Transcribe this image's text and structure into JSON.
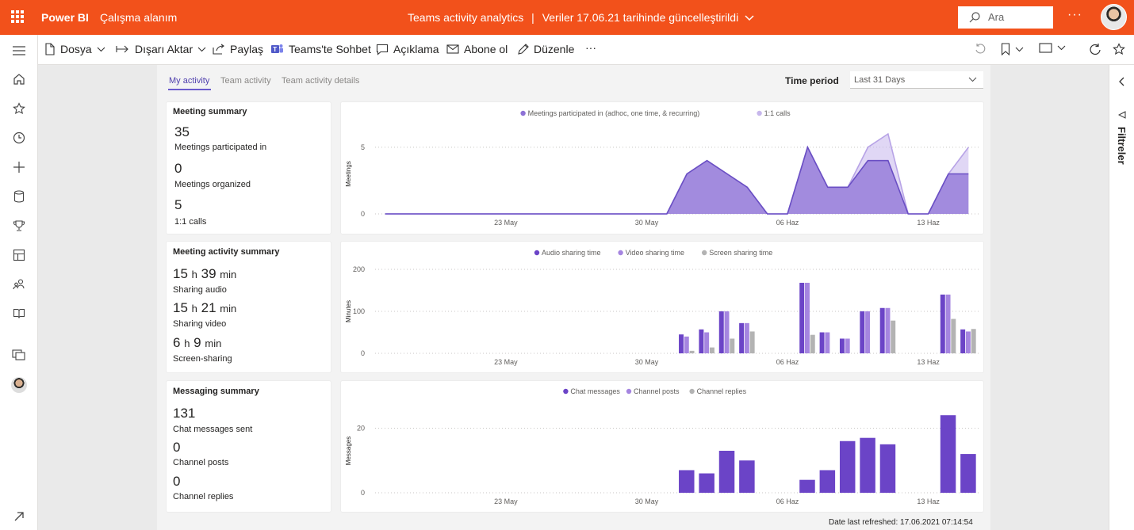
{
  "topbar": {
    "brand": "Power BI",
    "workspace": "Çalışma alanım",
    "report_title": "Teams activity analytics",
    "separator": "|",
    "refresh_note": "Veriler 17.06.21 tarihinde güncelleştirildi",
    "search_placeholder": "Ara",
    "more": "···",
    "colors": {
      "bar": "#f2511b"
    }
  },
  "toolbar": {
    "file": "Dosya",
    "export": "Dışarı Aktar",
    "share": "Paylaş",
    "teams_chat": "Teams'te Sohbet",
    "comment": "Açıklama",
    "subscribe": "Abone ol",
    "edit": "Düzenle",
    "more": "···"
  },
  "filters": {
    "label": "Filtreler"
  },
  "tabs": [
    {
      "label": "My activity"
    },
    {
      "label": "Team activity"
    },
    {
      "label": "Team activity details"
    }
  ],
  "time_period": {
    "label": "Time period",
    "value": "Last 31 Days"
  },
  "meeting_summary": {
    "title": "Meeting summary",
    "participated_value": "35",
    "participated_label": "Meetings participated in",
    "organized_value": "0",
    "organized_label": "Meetings organized",
    "calls_value": "5",
    "calls_label": "1:1 calls"
  },
  "meeting_activity": {
    "title": "Meeting activity summary",
    "audio_h": "15",
    "audio_m": "39",
    "audio_label": "Sharing audio",
    "video_h": "15",
    "video_m": "21",
    "video_label": "Sharing video",
    "screen_h": "6",
    "screen_m": "9",
    "screen_label": "Screen-sharing",
    "unit_h": "h",
    "unit_min": "min"
  },
  "messaging": {
    "title": "Messaging summary",
    "chat_value": "131",
    "chat_label": "Chat messages sent",
    "posts_value": "0",
    "posts_label": "Channel posts",
    "replies_value": "0",
    "replies_label": "Channel replies"
  },
  "footer": {
    "refreshed": "Date last refreshed: 17.06.2021 07:14:54"
  },
  "chart_data": [
    {
      "type": "area",
      "legend_position": "top",
      "ylabel": "Meetings",
      "x_tick_labels": [
        "23 May",
        "30 May",
        "06 Haz",
        "13 Haz"
      ],
      "x_tick_index": [
        6,
        13,
        20,
        27
      ],
      "ylim": [
        0,
        6
      ],
      "y_ticks": [
        0,
        5
      ],
      "series": [
        {
          "name": "Meetings participated in (adhoc, one time, & recurring)",
          "color": "#8e72d6",
          "values": [
            0,
            0,
            0,
            0,
            0,
            0,
            0,
            0,
            0,
            0,
            0,
            0,
            0,
            0,
            0,
            3,
            4,
            3,
            2,
            0,
            0,
            5,
            2,
            2,
            4,
            4,
            0,
            0,
            3,
            3
          ]
        },
        {
          "name": "1:1 calls",
          "color": "#c7b7ec",
          "values": [
            0,
            0,
            0,
            0,
            0,
            0,
            0,
            0,
            0,
            0,
            0,
            0,
            0,
            0,
            0,
            3,
            4,
            3,
            2,
            0,
            0,
            5,
            2,
            2,
            5,
            6,
            0,
            0,
            3,
            5
          ]
        }
      ]
    },
    {
      "type": "bar",
      "legend_position": "top",
      "ylabel": "Minutes",
      "x_tick_labels": [
        "23 May",
        "30 May",
        "06 Haz",
        "13 Haz"
      ],
      "x_tick_index": [
        6,
        13,
        20,
        27
      ],
      "ylim": [
        0,
        200
      ],
      "y_ticks": [
        0,
        100,
        200
      ],
      "series": [
        {
          "name": "Audio sharing time",
          "color": "#6b44c7",
          "values": [
            0,
            0,
            0,
            0,
            0,
            0,
            0,
            0,
            0,
            0,
            0,
            0,
            0,
            0,
            0,
            45,
            57,
            100,
            72,
            0,
            0,
            168,
            50,
            35,
            100,
            108,
            0,
            0,
            140,
            57
          ]
        },
        {
          "name": "Video sharing time",
          "color": "#a585e0",
          "values": [
            0,
            0,
            0,
            0,
            0,
            0,
            0,
            0,
            0,
            0,
            0,
            0,
            0,
            0,
            0,
            40,
            50,
            100,
            72,
            0,
            0,
            168,
            50,
            35,
            100,
            108,
            0,
            0,
            140,
            52
          ]
        },
        {
          "name": "Screen sharing time",
          "color": "#b3b3b3",
          "values": [
            0,
            0,
            0,
            0,
            0,
            0,
            0,
            0,
            0,
            0,
            0,
            0,
            0,
            0,
            0,
            6,
            14,
            35,
            52,
            0,
            0,
            44,
            0,
            0,
            0,
            78,
            0,
            0,
            82,
            58
          ]
        }
      ]
    },
    {
      "type": "bar",
      "legend_position": "top",
      "ylabel": "Messages",
      "x_tick_labels": [
        "23 May",
        "30 May",
        "06 Haz",
        "13 Haz"
      ],
      "x_tick_index": [
        6,
        13,
        20,
        27
      ],
      "ylim": [
        0,
        26
      ],
      "y_ticks": [
        0,
        20
      ],
      "series": [
        {
          "name": "Chat messages",
          "color": "#6b44c7",
          "values": [
            0,
            0,
            0,
            0,
            0,
            0,
            0,
            0,
            0,
            0,
            0,
            0,
            0,
            0,
            0,
            7,
            6,
            13,
            10,
            0,
            0,
            4,
            7,
            16,
            17,
            15,
            0,
            0,
            24,
            12
          ]
        },
        {
          "name": "Channel posts",
          "color": "#a585e0",
          "values": []
        },
        {
          "name": "Channel replies",
          "color": "#b3b3b3",
          "values": []
        }
      ]
    }
  ]
}
